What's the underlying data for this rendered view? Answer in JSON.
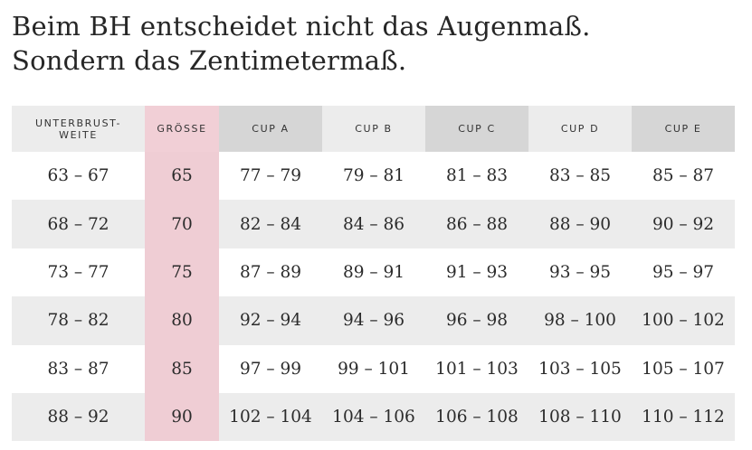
{
  "headline": {
    "line1": "Beim BH entscheidet nicht das Augenmaß.",
    "line2": "Sondern das Zentimetermaß."
  },
  "table": {
    "headers": [
      "UNTERBRUST-\nWEITE",
      "GRÖSSE",
      "CUP A",
      "CUP B",
      "CUP C",
      "CUP D",
      "CUP E"
    ],
    "rows": [
      [
        "63 – 67",
        "65",
        "77 – 79",
        "79 – 81",
        "81 – 83",
        "83 – 85",
        "85 – 87"
      ],
      [
        "68 – 72",
        "70",
        "82 – 84",
        "84 – 86",
        "86 – 88",
        "88 – 90",
        "90 – 92"
      ],
      [
        "73 – 77",
        "75",
        "87 – 89",
        "89 – 91",
        "91 – 93",
        "93 – 95",
        "95 – 97"
      ],
      [
        "78 – 82",
        "80",
        "92 – 94",
        "94 – 96",
        "96 – 98",
        "98 – 100",
        "100 – 102"
      ],
      [
        "83 – 87",
        "85",
        "97 – 99",
        "99 – 101",
        "101 – 103",
        "103 – 105",
        "105 – 107"
      ],
      [
        "88 – 92",
        "90",
        "102 – 104",
        "104 – 106",
        "106 – 108",
        "108 – 110",
        "110 – 112"
      ]
    ]
  },
  "colors": {
    "header_light": "#ececec",
    "header_dark": "#d6d6d6",
    "size_column": "#efcdd4",
    "row_alt": "#ececec"
  }
}
